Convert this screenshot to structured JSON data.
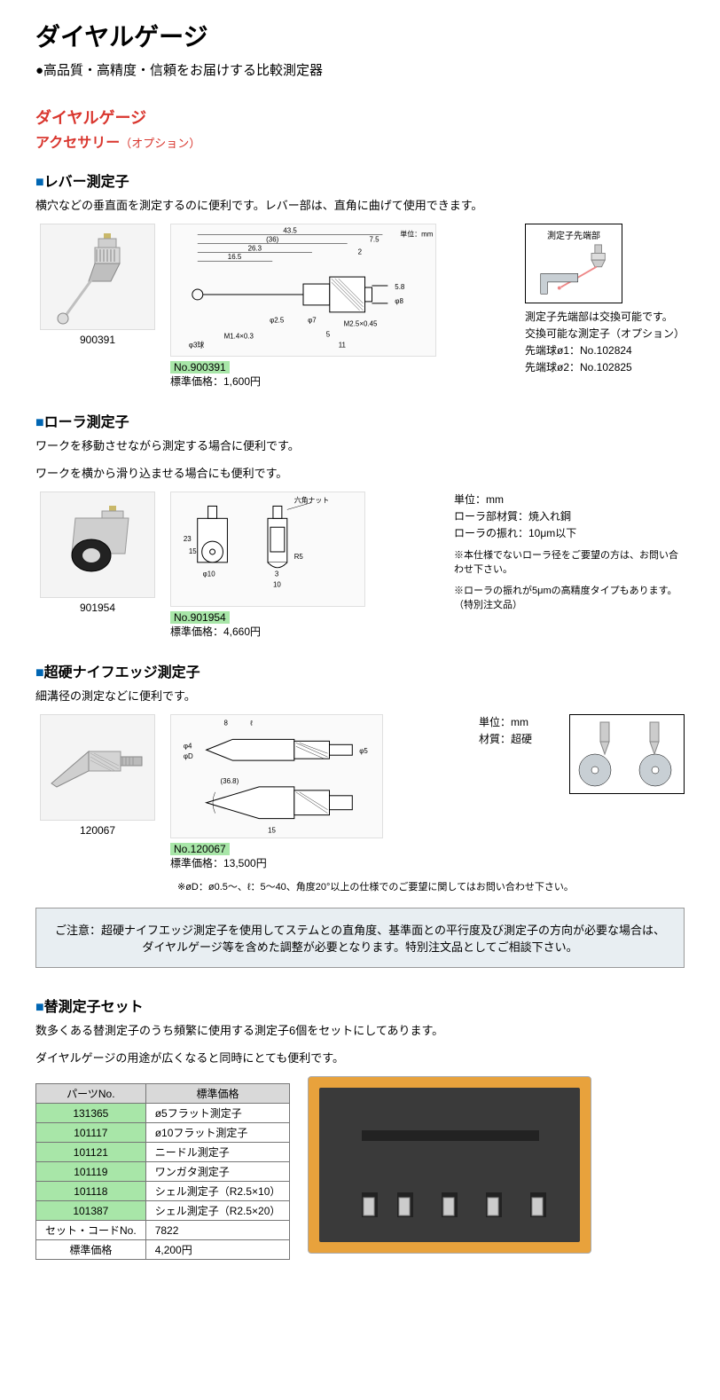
{
  "page": {
    "main_title": "ダイヤルゲージ",
    "subtitle": "●高品質・高精度・信頼をお届けする比較測定器"
  },
  "category": {
    "title": "ダイヤルゲージ",
    "subcategory": "アクセサリー",
    "option_label": "（オプション）"
  },
  "sections": {
    "lever": {
      "heading": "レバー測定子",
      "desc": "横穴などの垂直面を測定するのに便利です。レバー部は、直角に曲げて使用できます。",
      "photo_label": "900391",
      "unit_label": "単位：mm",
      "dims": {
        "total_w": "43.5",
        "inner_w1": "(36)",
        "inner_w2": "26.3",
        "inner_w3": "16.5",
        "right_7_5": "7.5",
        "right_2": "2",
        "d2_5": "φ2.5",
        "d7": "φ7",
        "d5_8": "5.8",
        "d8": "φ8",
        "thread1": "M1.4×0.3",
        "thread2": "M2.5×0.45",
        "ball": "φ3球",
        "five": "5",
        "eleven": "11"
      },
      "no_label": "No.900391",
      "price_label": "標準価格：1,600円",
      "inset_label": "測定子先端部",
      "inset_notes": [
        "測定子先端部は交換可能です。",
        "交換可能な測定子（オプション）",
        "先端球ø1：No.102824",
        "先端球ø2：No.102825"
      ]
    },
    "roller": {
      "heading": "ローラ測定子",
      "desc1": "ワークを移動させながら測定する場合に便利です。",
      "desc2": "ワークを横から滑り込ませる場合にも便利です。",
      "photo_label": "901954",
      "dims": {
        "h23": "23",
        "h15": "15",
        "d10": "φ10",
        "nut": "六角ナット",
        "r5": "R5",
        "three": "3",
        "ten": "10"
      },
      "no_label": "No.901954",
      "price_label": "標準価格：4,660円",
      "spec_unit": "単位：mm",
      "spec_material": "ローラ部材質：焼入れ鋼",
      "spec_runout": "ローラの振れ：10μm以下",
      "note1": "※本仕様でないローラ径をご要望の方は、お問い合わせ下さい。",
      "note2": "※ローラの振れが5μmの高精度タイプもあります。（特別注文品）"
    },
    "knife": {
      "heading": "超硬ナイフエッジ測定子",
      "desc": "細溝径の測定などに便利です。",
      "photo_label": "120067",
      "dims": {
        "eight": "8",
        "ell": "ℓ",
        "d4": "φ4",
        "dD": "φD",
        "d5": "φ5",
        "angle": "(36.8)",
        "fifteen": "15"
      },
      "no_label": "No.120067",
      "price_label": "標準価格：13,500円",
      "spec_unit": "単位：mm",
      "spec_material": "材質：超硬",
      "footnote": "※øD：ø0.5～、ℓ：5～40、角度20°以上の仕様でのご要望に関してはお問い合わせ下さい。"
    }
  },
  "caution": "ご注意：超硬ナイフエッジ測定子を使用してステムとの直角度、基準面との平行度及び測定子の方向が必要な場合は、ダイヤルゲージ等を含めた調整が必要となります。特別注文品としてご相談下さい。",
  "set": {
    "heading": "替測定子セット",
    "desc1": "数多くある替測定子のうち頻繁に使用する測定子6個をセットにしてあります。",
    "desc2": "ダイヤルゲージの用途が広くなると同時にとても便利です。",
    "table": {
      "headers": [
        "パーツNo.",
        "標準価格"
      ],
      "content_header": "標準価格",
      "rows": [
        {
          "pn": "131365",
          "desc": "ø5フラット測定子",
          "green": true
        },
        {
          "pn": "101117",
          "desc": "ø10フラット測定子",
          "green": true
        },
        {
          "pn": "101121",
          "desc": "ニードル測定子",
          "green": true
        },
        {
          "pn": "101119",
          "desc": "ワンガタ測定子",
          "green": true
        },
        {
          "pn": "101118",
          "desc": "シェル測定子（R2.5×10）",
          "green": true
        },
        {
          "pn": "101387",
          "desc": "シェル測定子（R2.5×20）",
          "green": true
        }
      ],
      "set_code_label": "セット・コードNo.",
      "set_code_value": "7822",
      "price_label": "標準価格",
      "price_value": "4,200円"
    }
  }
}
